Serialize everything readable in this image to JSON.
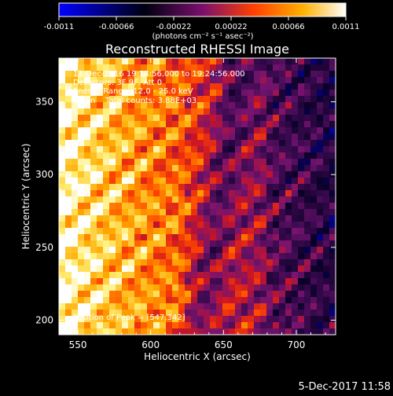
{
  "colorbar": {
    "tick_labels": [
      "-0.0011",
      "-0.00066",
      "-0.00022",
      "0.00022",
      "0.00066",
      "0.0011"
    ],
    "unit_label": "(photons cm⁻² s⁻¹ asec⁻²)",
    "range": [
      -0.0011,
      0.0011
    ],
    "colors": [
      "#0000ff",
      "#000000",
      "#7a0f6e",
      "#ff4000",
      "#ffb000",
      "#ffffff"
    ]
  },
  "chart_data": {
    "type": "heatmap",
    "title": "Reconstructed RHESSI Image",
    "xlabel": "Heliocentric X (arcsec)",
    "ylabel": "Heliocentric Y (arcsec)",
    "xlim": [
      537,
      727
    ],
    "ylim": [
      190,
      380
    ],
    "x_ticks": [
      550,
      600,
      650,
      700
    ],
    "y_ticks": [
      200,
      250,
      300,
      350
    ],
    "annotations": [
      "11-Dec-2016 19:14:56.000 to 19:24:56.000",
      "Detectors: 3F 9F, Att 0",
      "Energy Range: 12.0 - 25.0 keV",
      "Clean    Total counts: 3.88E+03"
    ],
    "peak_label": "Position of Peak = [547,342]",
    "peak": [
      547,
      342
    ]
  },
  "footer": {
    "timestamp": "5-Dec-2017 11:58"
  }
}
